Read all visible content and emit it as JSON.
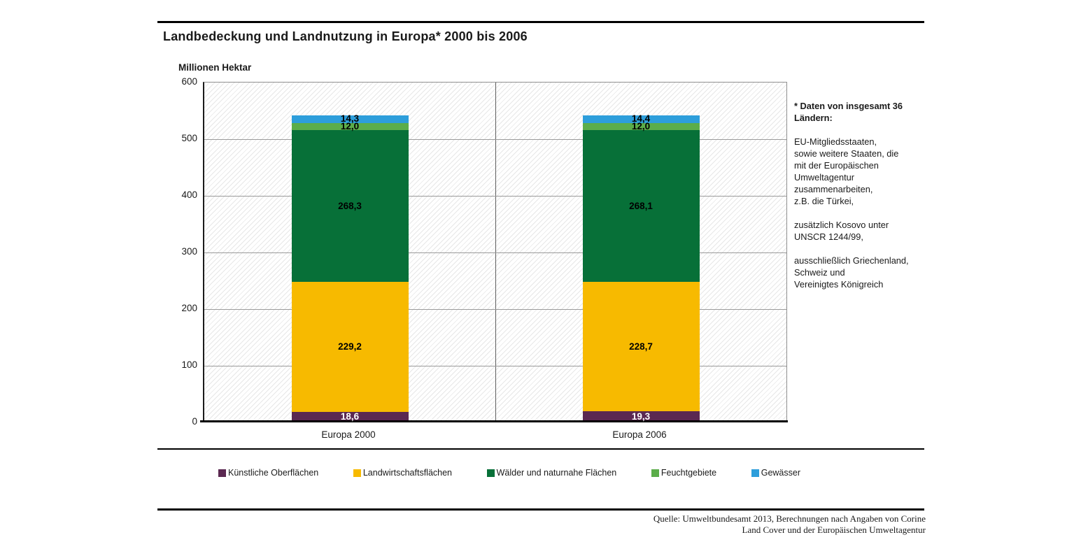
{
  "title": "Landbedeckung und Landnutzung in Europa* 2000 bis 2006",
  "y_axis_title": "Millionen Hektar",
  "chart_data": {
    "type": "bar",
    "stacked": true,
    "categories": [
      "Europa 2000",
      "Europa 2006"
    ],
    "series": [
      {
        "name": "Künstliche Oberflächen",
        "color": "#5b2851",
        "values": [
          18.6,
          19.3
        ],
        "labels": [
          "18,6",
          "19,3"
        ],
        "label_color": "#ffffff"
      },
      {
        "name": "Landwirtschaftsflächen",
        "color": "#f7ba00",
        "values": [
          229.2,
          228.7
        ],
        "labels": [
          "229,2",
          "228,7"
        ],
        "label_color": "#000000"
      },
      {
        "name": "Wälder und naturnahe Flächen",
        "color": "#077038",
        "values": [
          268.3,
          268.1
        ],
        "labels": [
          "268,3",
          "268,1"
        ],
        "label_color": "#000000"
      },
      {
        "name": "Feuchtgebiete",
        "color": "#5bad4a",
        "values": [
          12.0,
          12.0
        ],
        "labels": [
          "12,0",
          "12,0"
        ],
        "label_color": "#000000"
      },
      {
        "name": "Gewässer",
        "color": "#2d9edb",
        "values": [
          14.3,
          14.4
        ],
        "labels": [
          "14,3",
          "14,4"
        ],
        "label_color": "#000000"
      }
    ],
    "ylim": [
      0,
      600
    ],
    "yticks": [
      0,
      100,
      200,
      300,
      400,
      500,
      600
    ],
    "grid": true,
    "legend_position": "bottom",
    "plot_background": "diagonal-hatch"
  },
  "annotation": {
    "paragraphs": [
      {
        "bold": true,
        "text": "* Daten von insgesamt 36\nLändern:"
      },
      {
        "bold": false,
        "text": "EU-Mitgliedsstaaten,\nsowie weitere Staaten, die\nmit der Europäischen\nUmweltagentur\nzusammenarbeiten,\nz.B.  die Türkei,"
      },
      {
        "bold": false,
        "text": "zusätzlich Kosovo unter\nUNSCR 1244/99,"
      },
      {
        "bold": false,
        "text": "ausschließlich Griechenland,\nSchweiz und\nVereinigtes Königreich"
      }
    ]
  },
  "source": {
    "text": "Quelle: Umweltbundesamt 2013, Berechnungen nach Angaben von Corine\nLand Cover und der Europäischen Umweltagentur"
  }
}
